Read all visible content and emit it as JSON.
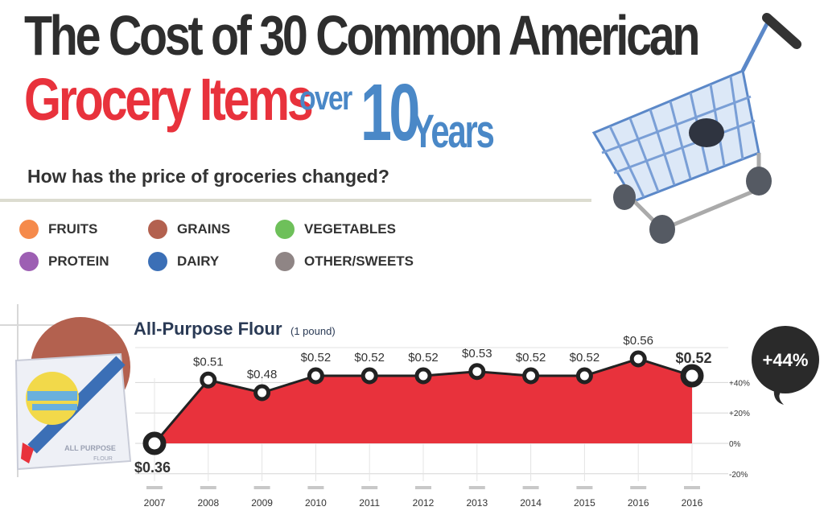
{
  "header": {
    "title_line1": "The Cost of 30 Common American",
    "title_line2": "Grocery Items",
    "title_over": "over",
    "title_num": "10",
    "title_years": "Years",
    "question": "How has the price of groceries changed?"
  },
  "legend": [
    {
      "label": "FRUITS",
      "color": "#f58a4b"
    },
    {
      "label": "GRAINS",
      "color": "#b3614f"
    },
    {
      "label": "VEGETABLES",
      "color": "#6ec05a"
    },
    {
      "label": "PROTEIN",
      "color": "#9d5fb3"
    },
    {
      "label": "DAIRY",
      "color": "#3b6fb6"
    },
    {
      "label": "OTHER/SWEETS",
      "color": "#8f8585"
    }
  ],
  "bag": {
    "label1": "ALL PURPOSE",
    "label2": "FLOUR"
  },
  "chart_data": {
    "type": "area",
    "title": "All-Purpose Flour",
    "unit": "(1 pound)",
    "x": [
      "2007",
      "2008",
      "2009",
      "2010",
      "2011",
      "2012",
      "2013",
      "2014",
      "2015",
      "2016",
      "2016"
    ],
    "values": [
      0.36,
      0.51,
      0.48,
      0.52,
      0.52,
      0.52,
      0.53,
      0.52,
      0.52,
      0.56,
      0.52
    ],
    "labels": [
      "$0.36",
      "$0.51",
      "$0.48",
      "$0.52",
      "$0.52",
      "$0.52",
      "$0.53",
      "$0.52",
      "$0.52",
      "$0.56",
      "$0.52"
    ],
    "right_axis": {
      "ticks": [
        "+40%",
        "+20%",
        "0%",
        "-20%"
      ],
      "values": [
        40,
        20,
        0,
        -20
      ]
    },
    "change_label": "+44%",
    "fill_color": "#e8323c",
    "line_color": "#222222"
  }
}
